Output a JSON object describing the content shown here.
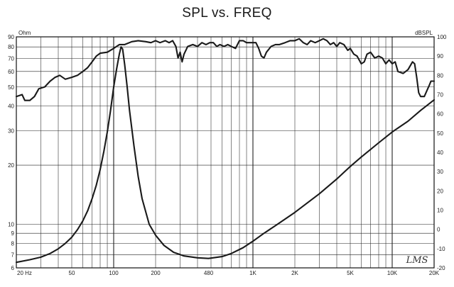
{
  "chart_data": {
    "type": "line",
    "title": "SPL vs. FREQ",
    "x_scale": "log",
    "xlim": [
      20,
      20000
    ],
    "x_ticks": [
      {
        "value": 20,
        "label": "20 Hz"
      },
      {
        "value": 50,
        "label": "50"
      },
      {
        "value": 100,
        "label": "100"
      },
      {
        "value": 200,
        "label": "200"
      },
      {
        "value": 480,
        "label": "480"
      },
      {
        "value": 1000,
        "label": "1K"
      },
      {
        "value": 2000,
        "label": "2K"
      },
      {
        "value": 5000,
        "label": "5K"
      },
      {
        "value": 10000,
        "label": "10K"
      },
      {
        "value": 20000,
        "label": "20K"
      }
    ],
    "left_axis": {
      "unit_label": "Ohm",
      "scale": "log",
      "ylim": [
        6,
        90
      ],
      "ticks": [
        {
          "value": 90,
          "label": "90"
        },
        {
          "value": 80,
          "label": "80"
        },
        {
          "value": 70,
          "label": "70"
        },
        {
          "value": 60,
          "label": "60"
        },
        {
          "value": 50,
          "label": "50"
        },
        {
          "value": 40,
          "label": "40"
        },
        {
          "value": 30,
          "label": "30"
        },
        {
          "value": 20,
          "label": "20"
        },
        {
          "value": 10,
          "label": "10"
        },
        {
          "value": 9,
          "label": "9"
        },
        {
          "value": 8,
          "label": "8"
        },
        {
          "value": 7,
          "label": "7"
        },
        {
          "value": 6,
          "label": "6"
        }
      ]
    },
    "right_axis": {
      "unit_label": "dBSPL",
      "scale": "linear",
      "ylim": [
        -20,
        100
      ],
      "ticks": [
        {
          "value": 100,
          "label": "100"
        },
        {
          "value": 90,
          "label": "90"
        },
        {
          "value": 80,
          "label": "80"
        },
        {
          "value": 70,
          "label": "70"
        },
        {
          "value": 60,
          "label": "60"
        },
        {
          "value": 50,
          "label": "50"
        },
        {
          "value": 40,
          "label": "40"
        },
        {
          "value": 30,
          "label": "30"
        },
        {
          "value": 20,
          "label": "20"
        },
        {
          "value": 10,
          "label": "10"
        },
        {
          "value": 0,
          "label": "0"
        },
        {
          "value": -10,
          "label": "-10"
        },
        {
          "value": -20,
          "label": "-20"
        }
      ]
    },
    "grid": true,
    "watermark": "LMS",
    "series": [
      {
        "axis": "right",
        "color": "#1a1a1a",
        "points": [
          [
            20,
            69
          ],
          [
            22,
            70
          ],
          [
            23,
            67
          ],
          [
            25,
            67
          ],
          [
            27,
            69
          ],
          [
            29,
            73
          ],
          [
            32,
            74
          ],
          [
            35,
            77
          ],
          [
            38,
            79
          ],
          [
            41,
            80
          ],
          [
            45,
            78
          ],
          [
            50,
            79
          ],
          [
            55,
            80
          ],
          [
            60,
            82
          ],
          [
            65,
            84
          ],
          [
            70,
            87
          ],
          [
            75,
            90
          ],
          [
            80,
            91.5
          ],
          [
            90,
            92
          ],
          [
            100,
            94
          ],
          [
            110,
            96
          ],
          [
            120,
            96
          ],
          [
            135,
            97.5
          ],
          [
            150,
            98
          ],
          [
            170,
            97.5
          ],
          [
            185,
            97
          ],
          [
            200,
            98
          ],
          [
            215,
            97
          ],
          [
            235,
            98
          ],
          [
            250,
            97
          ],
          [
            265,
            98
          ],
          [
            280,
            95
          ],
          [
            290,
            89
          ],
          [
            300,
            92
          ],
          [
            310,
            87
          ],
          [
            320,
            91
          ],
          [
            340,
            95
          ],
          [
            370,
            96
          ],
          [
            400,
            95
          ],
          [
            430,
            97
          ],
          [
            460,
            96
          ],
          [
            490,
            97
          ],
          [
            520,
            97
          ],
          [
            550,
            95
          ],
          [
            580,
            96
          ],
          [
            620,
            95
          ],
          [
            660,
            96
          ],
          [
            700,
            95
          ],
          [
            750,
            94
          ],
          [
            800,
            98
          ],
          [
            850,
            98
          ],
          [
            900,
            97
          ],
          [
            950,
            97
          ],
          [
            1000,
            97
          ],
          [
            1050,
            97
          ],
          [
            1100,
            94
          ],
          [
            1150,
            90
          ],
          [
            1200,
            89
          ],
          [
            1250,
            92
          ],
          [
            1350,
            95
          ],
          [
            1450,
            96
          ],
          [
            1550,
            96
          ],
          [
            1700,
            97
          ],
          [
            1850,
            98
          ],
          [
            2000,
            98
          ],
          [
            2150,
            99
          ],
          [
            2300,
            97
          ],
          [
            2450,
            96
          ],
          [
            2600,
            98
          ],
          [
            2800,
            97
          ],
          [
            3000,
            98
          ],
          [
            3200,
            99
          ],
          [
            3400,
            98
          ],
          [
            3600,
            96
          ],
          [
            3800,
            97
          ],
          [
            4000,
            95
          ],
          [
            4200,
            97
          ],
          [
            4500,
            96
          ],
          [
            4800,
            93
          ],
          [
            5000,
            94
          ],
          [
            5300,
            91
          ],
          [
            5600,
            90
          ],
          [
            6000,
            86
          ],
          [
            6300,
            87
          ],
          [
            6600,
            91
          ],
          [
            7000,
            92
          ],
          [
            7500,
            89
          ],
          [
            8000,
            90
          ],
          [
            8500,
            89
          ],
          [
            9000,
            86
          ],
          [
            9500,
            88
          ],
          [
            10000,
            86
          ],
          [
            10500,
            87
          ],
          [
            11000,
            82
          ],
          [
            12000,
            81
          ],
          [
            13000,
            83
          ],
          [
            14000,
            87
          ],
          [
            14500,
            86
          ],
          [
            15000,
            79
          ],
          [
            15500,
            71
          ],
          [
            16000,
            69
          ],
          [
            17000,
            69
          ],
          [
            18000,
            73
          ],
          [
            18500,
            75
          ],
          [
            19000,
            77
          ],
          [
            20000,
            77
          ]
        ]
      },
      {
        "axis": "left",
        "color": "#1a1a1a",
        "points": [
          [
            20,
            6.4
          ],
          [
            25,
            6.6
          ],
          [
            30,
            6.8
          ],
          [
            35,
            7.1
          ],
          [
            40,
            7.5
          ],
          [
            45,
            8.0
          ],
          [
            50,
            8.6
          ],
          [
            55,
            9.4
          ],
          [
            60,
            10.4
          ],
          [
            65,
            11.7
          ],
          [
            70,
            13.5
          ],
          [
            75,
            15.8
          ],
          [
            80,
            19.0
          ],
          [
            85,
            23.5
          ],
          [
            90,
            29.5
          ],
          [
            95,
            38
          ],
          [
            100,
            50
          ],
          [
            105,
            62
          ],
          [
            110,
            74
          ],
          [
            113,
            80
          ],
          [
            116,
            78
          ],
          [
            120,
            65
          ],
          [
            125,
            50
          ],
          [
            130,
            38
          ],
          [
            140,
            25
          ],
          [
            150,
            17.5
          ],
          [
            160,
            13.5
          ],
          [
            180,
            10.0
          ],
          [
            200,
            8.8
          ],
          [
            230,
            7.8
          ],
          [
            270,
            7.2
          ],
          [
            320,
            6.9
          ],
          [
            400,
            6.75
          ],
          [
            480,
            6.7
          ],
          [
            600,
            6.85
          ],
          [
            700,
            7.1
          ],
          [
            850,
            7.6
          ],
          [
            1000,
            8.2
          ],
          [
            1200,
            9.0
          ],
          [
            1500,
            10.0
          ],
          [
            2000,
            11.5
          ],
          [
            3000,
            14.3
          ],
          [
            4000,
            17.0
          ],
          [
            5000,
            19.7
          ],
          [
            6000,
            22.0
          ],
          [
            8000,
            26.0
          ],
          [
            10000,
            29.5
          ],
          [
            13000,
            33.5
          ],
          [
            16000,
            38.0
          ],
          [
            20000,
            43.0
          ]
        ]
      }
    ]
  }
}
